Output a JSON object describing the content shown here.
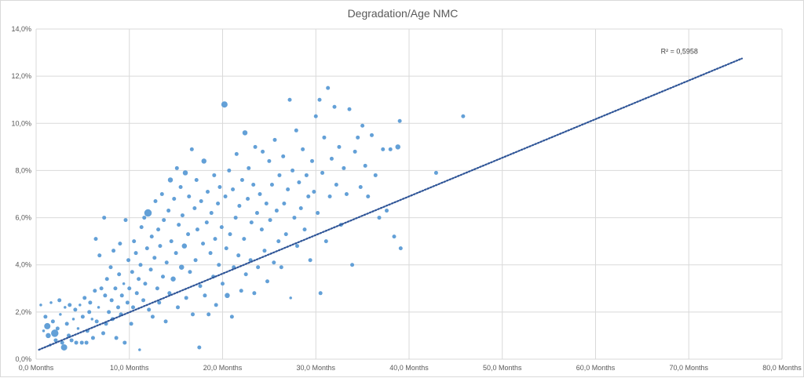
{
  "chart_data": {
    "type": "scatter",
    "title": "Degradation/Age NMC",
    "xlabel": "",
    "ylabel": "",
    "xlim": [
      0,
      80
    ],
    "ylim": [
      0,
      14
    ],
    "x_ticks": [
      {
        "value": 0,
        "label": "0,0 Months"
      },
      {
        "value": 10,
        "label": "10,0 Months"
      },
      {
        "value": 20,
        "label": "20,0 Months"
      },
      {
        "value": 30,
        "label": "30,0 Months"
      },
      {
        "value": 40,
        "label": "40,0 Months"
      },
      {
        "value": 50,
        "label": "50,0 Months"
      },
      {
        "value": 60,
        "label": "60,0 Months"
      },
      {
        "value": 70,
        "label": "70,0 Months"
      },
      {
        "value": 80,
        "label": "80,0 Months"
      }
    ],
    "y_ticks": [
      {
        "value": 0,
        "label": "0,0%"
      },
      {
        "value": 2,
        "label": "2,0%"
      },
      {
        "value": 4,
        "label": "4,0%"
      },
      {
        "value": 6,
        "label": "6,0%"
      },
      {
        "value": 8,
        "label": "8,0%"
      },
      {
        "value": 10,
        "label": "10,0%"
      },
      {
        "value": 12,
        "label": "12,0%"
      },
      {
        "value": 14,
        "label": "14,0%"
      }
    ],
    "grid": true,
    "point_color": "#5b9bd5",
    "trendline": {
      "style": "dotted",
      "color": "#2f5597",
      "start": [
        0.3,
        0.4
      ],
      "end": [
        75.7,
        12.75
      ],
      "r2_label": "R² = 0,5958",
      "label_anchor": [
        67.0,
        12.95
      ]
    },
    "series": [
      {
        "name": "NMC",
        "points": [
          [
            0.5,
            2.3,
            1
          ],
          [
            0.8,
            1.2,
            1
          ],
          [
            1.0,
            1.8,
            2
          ],
          [
            1.2,
            1.4,
            4
          ],
          [
            1.3,
            1.0,
            3
          ],
          [
            1.5,
            0.6,
            1
          ],
          [
            1.6,
            2.4,
            1
          ],
          [
            1.8,
            1.6,
            2
          ],
          [
            2.0,
            1.1,
            5
          ],
          [
            2.1,
            0.8,
            2
          ],
          [
            2.3,
            1.3,
            2
          ],
          [
            2.5,
            2.5,
            2
          ],
          [
            2.6,
            1.9,
            1
          ],
          [
            2.8,
            0.7,
            2
          ],
          [
            3.0,
            0.5,
            4
          ],
          [
            3.1,
            2.2,
            1
          ],
          [
            3.3,
            1.5,
            2
          ],
          [
            3.5,
            1.0,
            2
          ],
          [
            3.6,
            2.3,
            2
          ],
          [
            3.8,
            0.8,
            2
          ],
          [
            4.0,
            1.7,
            1
          ],
          [
            4.2,
            2.1,
            2
          ],
          [
            4.3,
            0.7,
            2
          ],
          [
            4.5,
            1.3,
            1
          ],
          [
            4.7,
            2.3,
            1
          ],
          [
            4.9,
            0.7,
            2
          ],
          [
            5.0,
            1.8,
            2
          ],
          [
            5.2,
            2.6,
            2
          ],
          [
            5.4,
            0.7,
            2
          ],
          [
            5.5,
            1.2,
            2
          ],
          [
            5.7,
            2.0,
            2
          ],
          [
            5.8,
            2.4,
            2
          ],
          [
            6.0,
            1.7,
            1
          ],
          [
            6.1,
            0.9,
            2
          ],
          [
            6.3,
            2.9,
            2
          ],
          [
            6.4,
            5.1,
            2
          ],
          [
            6.5,
            1.6,
            2
          ],
          [
            6.7,
            2.2,
            1
          ],
          [
            6.8,
            4.4,
            2
          ],
          [
            7.0,
            3.0,
            2
          ],
          [
            7.2,
            1.1,
            2
          ],
          [
            7.3,
            6.0,
            2
          ],
          [
            7.4,
            2.7,
            2
          ],
          [
            7.5,
            1.5,
            2
          ],
          [
            7.6,
            3.4,
            2
          ],
          [
            7.8,
            2.0,
            2
          ],
          [
            8.0,
            3.9,
            2
          ],
          [
            8.1,
            2.5,
            2
          ],
          [
            8.2,
            1.7,
            2
          ],
          [
            8.3,
            4.6,
            2
          ],
          [
            8.5,
            3.0,
            2
          ],
          [
            8.6,
            0.9,
            2
          ],
          [
            8.8,
            2.2,
            2
          ],
          [
            8.9,
            3.6,
            2
          ],
          [
            9.0,
            4.9,
            2
          ],
          [
            9.1,
            1.9,
            2
          ],
          [
            9.2,
            2.7,
            2
          ],
          [
            9.4,
            3.2,
            1
          ],
          [
            9.5,
            0.7,
            2
          ],
          [
            9.6,
            5.9,
            2
          ],
          [
            9.8,
            2.4,
            2
          ],
          [
            9.9,
            4.2,
            2
          ],
          [
            10.0,
            3.0,
            2
          ],
          [
            10.2,
            1.5,
            2
          ],
          [
            10.3,
            3.7,
            2
          ],
          [
            10.4,
            2.2,
            2
          ],
          [
            10.5,
            5.0,
            2
          ],
          [
            10.7,
            4.5,
            2
          ],
          [
            10.8,
            2.8,
            2
          ],
          [
            11.0,
            3.4,
            2
          ],
          [
            11.1,
            0.4,
            1
          ],
          [
            11.2,
            4.0,
            2
          ],
          [
            11.3,
            5.6,
            2
          ],
          [
            11.5,
            2.5,
            2
          ],
          [
            11.6,
            6.0,
            2
          ],
          [
            11.7,
            3.2,
            2
          ],
          [
            11.9,
            4.7,
            2
          ],
          [
            12.0,
            6.2,
            5
          ],
          [
            12.1,
            2.1,
            2
          ],
          [
            12.3,
            3.8,
            2
          ],
          [
            12.4,
            5.2,
            2
          ],
          [
            12.5,
            1.8,
            2
          ],
          [
            12.7,
            4.3,
            2
          ],
          [
            12.8,
            6.7,
            2
          ],
          [
            13.0,
            3.0,
            2
          ],
          [
            13.1,
            5.5,
            2
          ],
          [
            13.2,
            2.4,
            2
          ],
          [
            13.3,
            4.8,
            2
          ],
          [
            13.5,
            7.0,
            2
          ],
          [
            13.6,
            3.5,
            2
          ],
          [
            13.7,
            5.9,
            2
          ],
          [
            13.9,
            1.6,
            2
          ],
          [
            14.0,
            4.1,
            2
          ],
          [
            14.2,
            6.3,
            2
          ],
          [
            14.3,
            2.8,
            2
          ],
          [
            14.4,
            7.6,
            3
          ],
          [
            14.5,
            5.0,
            2
          ],
          [
            14.7,
            3.4,
            3
          ],
          [
            14.8,
            6.8,
            2
          ],
          [
            15.0,
            4.5,
            2
          ],
          [
            15.1,
            8.1,
            2
          ],
          [
            15.2,
            2.2,
            2
          ],
          [
            15.3,
            5.7,
            2
          ],
          [
            15.5,
            7.3,
            2
          ],
          [
            15.6,
            3.9,
            3
          ],
          [
            15.7,
            6.1,
            2
          ],
          [
            15.9,
            4.8,
            3
          ],
          [
            16.0,
            7.9,
            3
          ],
          [
            16.1,
            2.6,
            2
          ],
          [
            16.3,
            5.3,
            2
          ],
          [
            16.4,
            6.9,
            2
          ],
          [
            16.5,
            3.7,
            2
          ],
          [
            16.7,
            8.9,
            2
          ],
          [
            16.8,
            1.9,
            2
          ],
          [
            17.0,
            6.4,
            2
          ],
          [
            17.1,
            4.2,
            2
          ],
          [
            17.2,
            7.6,
            2
          ],
          [
            17.3,
            5.5,
            2
          ],
          [
            17.5,
            0.5,
            2
          ],
          [
            17.6,
            3.1,
            2
          ],
          [
            17.7,
            6.7,
            2
          ],
          [
            17.9,
            4.9,
            2
          ],
          [
            18.0,
            8.4,
            3
          ],
          [
            18.1,
            2.7,
            2
          ],
          [
            18.3,
            5.8,
            2
          ],
          [
            18.4,
            7.1,
            2
          ],
          [
            18.5,
            1.9,
            2
          ],
          [
            18.7,
            4.5,
            2
          ],
          [
            18.8,
            6.2,
            2
          ],
          [
            19.0,
            3.5,
            2
          ],
          [
            19.1,
            7.8,
            2
          ],
          [
            19.2,
            5.1,
            2
          ],
          [
            19.3,
            2.3,
            2
          ],
          [
            19.5,
            6.6,
            2
          ],
          [
            19.6,
            4.0,
            2
          ],
          [
            19.7,
            7.3,
            2
          ],
          [
            19.9,
            5.6,
            2
          ],
          [
            20.0,
            3.2,
            2
          ],
          [
            20.2,
            10.8,
            4
          ],
          [
            20.3,
            6.9,
            2
          ],
          [
            20.4,
            4.7,
            2
          ],
          [
            20.5,
            2.7,
            3
          ],
          [
            20.7,
            8.0,
            2
          ],
          [
            20.8,
            5.3,
            2
          ],
          [
            21.0,
            1.8,
            2
          ],
          [
            21.1,
            7.2,
            2
          ],
          [
            21.2,
            3.9,
            2
          ],
          [
            21.4,
            6.0,
            2
          ],
          [
            21.5,
            8.7,
            2
          ],
          [
            21.7,
            4.4,
            2
          ],
          [
            21.8,
            6.5,
            2
          ],
          [
            22.0,
            2.9,
            2
          ],
          [
            22.1,
            7.6,
            2
          ],
          [
            22.3,
            5.1,
            2
          ],
          [
            22.4,
            9.6,
            3
          ],
          [
            22.5,
            3.6,
            2
          ],
          [
            22.7,
            6.8,
            2
          ],
          [
            22.8,
            8.1,
            2
          ],
          [
            23.0,
            4.2,
            2
          ],
          [
            23.1,
            5.8,
            2
          ],
          [
            23.3,
            7.4,
            2
          ],
          [
            23.4,
            2.8,
            2
          ],
          [
            23.5,
            9.0,
            2
          ],
          [
            23.7,
            6.2,
            2
          ],
          [
            23.8,
            3.9,
            2
          ],
          [
            24.0,
            7.0,
            2
          ],
          [
            24.2,
            5.5,
            2
          ],
          [
            24.3,
            8.8,
            2
          ],
          [
            24.5,
            4.6,
            2
          ],
          [
            24.7,
            6.6,
            2
          ],
          [
            24.8,
            3.3,
            2
          ],
          [
            25.0,
            8.4,
            2
          ],
          [
            25.1,
            5.9,
            2
          ],
          [
            25.3,
            7.4,
            2
          ],
          [
            25.5,
            4.1,
            2
          ],
          [
            25.6,
            9.3,
            2
          ],
          [
            25.8,
            6.3,
            2
          ],
          [
            26.0,
            5.0,
            2
          ],
          [
            26.1,
            7.8,
            2
          ],
          [
            26.3,
            3.9,
            2
          ],
          [
            26.5,
            8.6,
            2
          ],
          [
            26.6,
            6.6,
            2
          ],
          [
            26.8,
            5.3,
            2
          ],
          [
            27.0,
            7.2,
            2
          ],
          [
            27.2,
            11.0,
            2
          ],
          [
            27.3,
            2.6,
            1
          ],
          [
            27.5,
            8.0,
            2
          ],
          [
            27.7,
            6.0,
            2
          ],
          [
            27.9,
            9.7,
            2
          ],
          [
            28.0,
            4.8,
            2
          ],
          [
            28.2,
            7.5,
            2
          ],
          [
            28.4,
            6.4,
            2
          ],
          [
            28.6,
            8.9,
            2
          ],
          [
            28.8,
            5.5,
            2
          ],
          [
            29.0,
            7.8,
            2
          ],
          [
            29.2,
            6.9,
            2
          ],
          [
            29.4,
            4.2,
            2
          ],
          [
            29.6,
            8.4,
            2
          ],
          [
            29.8,
            7.1,
            2
          ],
          [
            30.0,
            10.3,
            2
          ],
          [
            30.2,
            6.2,
            2
          ],
          [
            30.4,
            11.0,
            2
          ],
          [
            30.5,
            2.8,
            2
          ],
          [
            30.7,
            7.9,
            2
          ],
          [
            30.9,
            9.4,
            2
          ],
          [
            31.1,
            5.0,
            2
          ],
          [
            31.3,
            11.5,
            2
          ],
          [
            31.5,
            6.9,
            2
          ],
          [
            31.7,
            8.5,
            2
          ],
          [
            32.0,
            10.7,
            2
          ],
          [
            32.2,
            7.4,
            2
          ],
          [
            32.5,
            9.0,
            2
          ],
          [
            32.7,
            5.7,
            2
          ],
          [
            33.0,
            8.1,
            2
          ],
          [
            33.3,
            7.0,
            2
          ],
          [
            33.6,
            10.6,
            2
          ],
          [
            33.9,
            4.0,
            2
          ],
          [
            34.2,
            8.8,
            2
          ],
          [
            34.5,
            9.4,
            2
          ],
          [
            34.8,
            7.3,
            2
          ],
          [
            35.0,
            9.9,
            2
          ],
          [
            35.3,
            8.2,
            2
          ],
          [
            35.6,
            6.9,
            2
          ],
          [
            36.0,
            9.5,
            2
          ],
          [
            36.4,
            7.8,
            2
          ],
          [
            36.8,
            6.0,
            2
          ],
          [
            37.2,
            8.9,
            2
          ],
          [
            37.6,
            6.3,
            2
          ],
          [
            38.0,
            8.9,
            2
          ],
          [
            38.4,
            5.2,
            2
          ],
          [
            38.8,
            9.0,
            3
          ],
          [
            39.0,
            10.1,
            2
          ],
          [
            39.1,
            4.7,
            2
          ],
          [
            42.9,
            7.9,
            2
          ],
          [
            45.8,
            10.3,
            2
          ]
        ]
      }
    ]
  }
}
